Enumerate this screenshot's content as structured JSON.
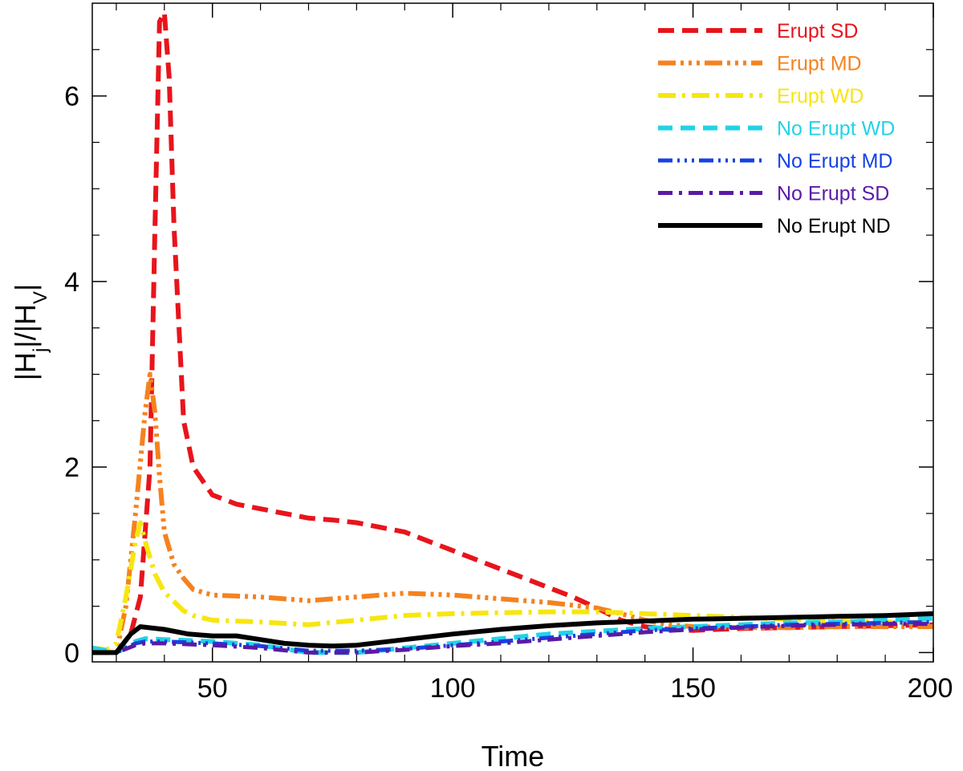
{
  "chart_data": {
    "type": "line",
    "title": "",
    "xlabel": "Time",
    "ylabel": {
      "prefix": "|H",
      "sub1": "j",
      "mid": "|/|H",
      "sub2": "V",
      "suffix": "|"
    },
    "xlim": [
      25,
      200
    ],
    "ylim": [
      -0.1,
      7
    ],
    "xticks": [
      50,
      100,
      150,
      200
    ],
    "xtick_labels": [
      "50",
      "100",
      "150",
      "200"
    ],
    "yticks": [
      0,
      2,
      4,
      6
    ],
    "ytick_labels": [
      "0",
      "2",
      "4",
      "6"
    ],
    "grid": false,
    "legend_position": "top-right",
    "series": [
      {
        "name": "Erupt SD",
        "color": "#e8141b",
        "dash": "20,10",
        "width": 6,
        "x": [
          25,
          30,
          33,
          35,
          37,
          38,
          39,
          40,
          41,
          42,
          44,
          46,
          48,
          50,
          55,
          60,
          65,
          70,
          75,
          80,
          85,
          90,
          95,
          100,
          105,
          110,
          115,
          120,
          125,
          130,
          135,
          140,
          145,
          150,
          155,
          160,
          170,
          180,
          190,
          200
        ],
        "y": [
          0.0,
          0.0,
          0.2,
          0.6,
          2.0,
          4.5,
          6.8,
          6.9,
          6.2,
          4.6,
          2.5,
          2.0,
          1.85,
          1.7,
          1.6,
          1.55,
          1.5,
          1.45,
          1.43,
          1.4,
          1.35,
          1.3,
          1.2,
          1.1,
          1.0,
          0.9,
          0.8,
          0.7,
          0.6,
          0.48,
          0.35,
          0.28,
          0.25,
          0.24,
          0.25,
          0.26,
          0.27,
          0.28,
          0.29,
          0.3
        ]
      },
      {
        "name": "Erupt MD",
        "color": "#f5821f",
        "dash": "22,6,4,6,4,6,4,6",
        "width": 6,
        "x": [
          25,
          30,
          32,
          34,
          36,
          37,
          38,
          39,
          40,
          42,
          44,
          46,
          50,
          55,
          60,
          70,
          80,
          90,
          100,
          110,
          120,
          130,
          135,
          140,
          145,
          150,
          160,
          170,
          180,
          190,
          200
        ],
        "y": [
          0.0,
          0.0,
          0.5,
          1.5,
          2.6,
          3.0,
          2.6,
          1.9,
          1.3,
          0.95,
          0.8,
          0.68,
          0.62,
          0.61,
          0.6,
          0.56,
          0.6,
          0.64,
          0.62,
          0.58,
          0.54,
          0.48,
          0.42,
          0.35,
          0.3,
          0.28,
          0.27,
          0.27,
          0.28,
          0.28,
          0.28
        ]
      },
      {
        "name": "Erupt WD",
        "color": "#f7e60f",
        "dash": "22,8,4,8",
        "width": 6,
        "x": [
          25,
          28,
          30,
          32,
          34,
          35,
          36,
          38,
          40,
          42,
          44,
          46,
          50,
          55,
          60,
          70,
          80,
          90,
          100,
          110,
          120,
          130,
          140,
          150,
          160,
          170,
          180,
          190,
          200
        ],
        "y": [
          0.05,
          0.03,
          0.1,
          0.6,
          1.2,
          1.4,
          1.2,
          0.85,
          0.65,
          0.55,
          0.45,
          0.4,
          0.35,
          0.34,
          0.33,
          0.3,
          0.35,
          0.4,
          0.42,
          0.43,
          0.44,
          0.44,
          0.42,
          0.4,
          0.38,
          0.36,
          0.34,
          0.33,
          0.32
        ]
      },
      {
        "name": "No Erupt WD",
        "color": "#22d3e6",
        "dash": "18,10",
        "width": 6,
        "x": [
          25,
          30,
          34,
          36,
          40,
          50,
          60,
          70,
          80,
          90,
          100,
          110,
          120,
          130,
          140,
          150,
          160,
          170,
          180,
          190,
          200
        ],
        "y": [
          0.05,
          0.0,
          0.12,
          0.15,
          0.14,
          0.12,
          0.08,
          0.0,
          0.0,
          0.05,
          0.1,
          0.15,
          0.2,
          0.23,
          0.26,
          0.28,
          0.3,
          0.32,
          0.33,
          0.35,
          0.37
        ]
      },
      {
        "name": "No Erupt MD",
        "color": "#1642e3",
        "dash": "18,6,3,6,3,6,3,6",
        "width": 5,
        "x": [
          25,
          30,
          34,
          36,
          40,
          50,
          60,
          70,
          80,
          90,
          100,
          110,
          120,
          130,
          140,
          150,
          160,
          170,
          180,
          190,
          200
        ],
        "y": [
          0.0,
          0.0,
          0.1,
          0.12,
          0.12,
          0.1,
          0.07,
          0.02,
          0.02,
          0.04,
          0.08,
          0.12,
          0.16,
          0.2,
          0.24,
          0.26,
          0.28,
          0.3,
          0.31,
          0.32,
          0.33
        ]
      },
      {
        "name": "No Erupt SD",
        "color": "#5a1aa6",
        "dash": "18,8,4,8",
        "width": 5,
        "x": [
          25,
          30,
          34,
          36,
          40,
          50,
          60,
          70,
          80,
          90,
          100,
          110,
          120,
          130,
          140,
          150,
          160,
          170,
          180,
          190,
          200
        ],
        "y": [
          0.0,
          0.0,
          0.08,
          0.1,
          0.1,
          0.08,
          0.05,
          0.0,
          0.0,
          0.03,
          0.07,
          0.1,
          0.14,
          0.18,
          0.22,
          0.25,
          0.27,
          0.29,
          0.3,
          0.31,
          0.31
        ]
      },
      {
        "name": "No Erupt ND",
        "color": "#000000",
        "dash": "",
        "width": 6,
        "x": [
          25,
          30,
          33,
          35,
          40,
          45,
          50,
          55,
          60,
          65,
          70,
          75,
          80,
          90,
          100,
          110,
          120,
          130,
          140,
          150,
          160,
          170,
          180,
          190,
          200
        ],
        "y": [
          0.0,
          0.0,
          0.2,
          0.28,
          0.25,
          0.2,
          0.18,
          0.18,
          0.14,
          0.1,
          0.08,
          0.07,
          0.08,
          0.14,
          0.2,
          0.25,
          0.29,
          0.32,
          0.34,
          0.36,
          0.37,
          0.38,
          0.39,
          0.4,
          0.42
        ]
      }
    ]
  }
}
